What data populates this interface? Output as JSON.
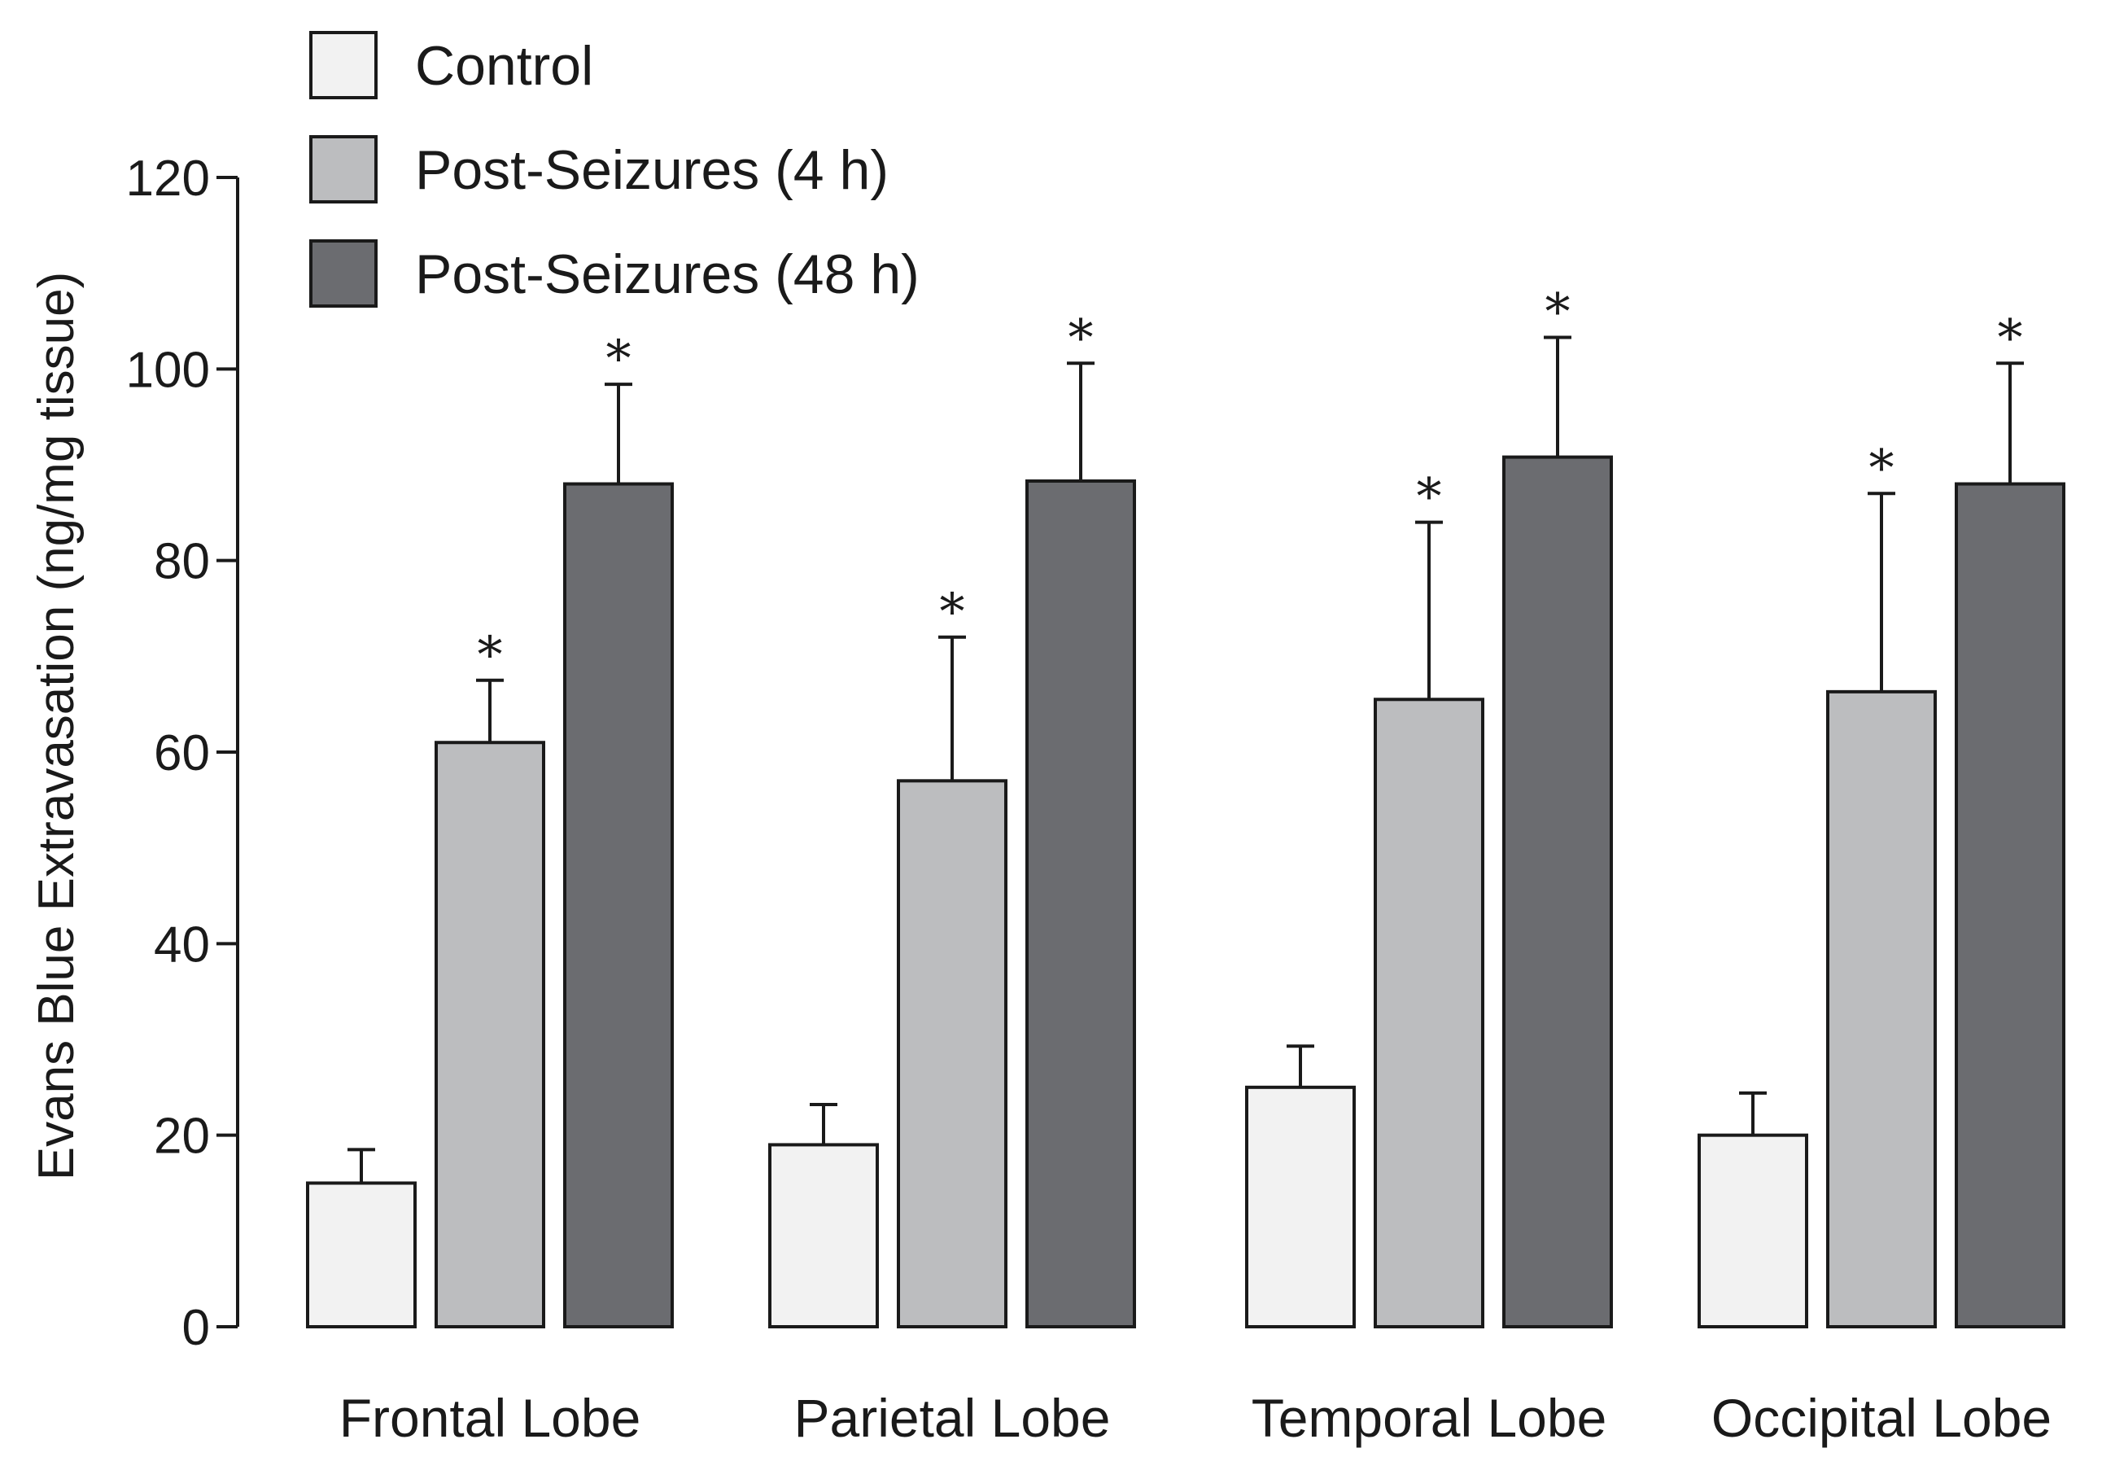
{
  "chart_data": {
    "type": "bar",
    "title": "",
    "xlabel": "",
    "ylabel": "Evans Blue Extravasation (ng/mg tissue)",
    "ylim": [
      0,
      120
    ],
    "yticks": [
      "0",
      "20",
      "40",
      "60",
      "80",
      "100",
      "120"
    ],
    "categories": [
      "Frontal Lobe",
      "Parietal Lobe",
      "Temporal Lobe",
      "Occipital Lobe"
    ],
    "series": [
      {
        "name": "Control",
        "color": "#f2f2f2",
        "values": [
          15,
          19,
          25,
          20
        ],
        "errors": [
          3.5,
          4.2,
          4.3,
          4.4
        ],
        "significant": [
          false,
          false,
          false,
          false
        ]
      },
      {
        "name": "Post-Seizures (4 h)",
        "color": "#bcbdbf",
        "values": [
          61,
          57,
          65.5,
          66.3
        ],
        "errors": [
          6.5,
          15,
          18.5,
          20.7
        ],
        "significant": [
          true,
          true,
          true,
          true
        ]
      },
      {
        "name": "Post-Seizures (48 h)",
        "color": "#6b6c70",
        "values": [
          88,
          88.3,
          90.8,
          88
        ],
        "errors": [
          10.4,
          12.3,
          12.5,
          12.6
        ],
        "significant": [
          true,
          true,
          true,
          true
        ]
      }
    ],
    "significance_marker": "*",
    "legend_position": "top-left"
  }
}
